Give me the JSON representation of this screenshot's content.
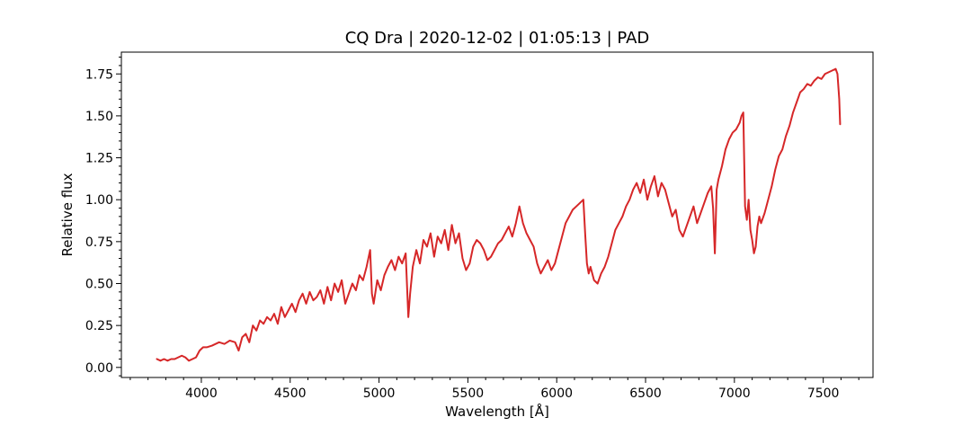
{
  "chart_data": {
    "type": "line",
    "title": "CQ Dra | 2020-12-02 | 01:05:13 | PAD",
    "xlabel": "Wavelength [Å]",
    "ylabel": "Relative flux",
    "xlim": [
      3550,
      7780
    ],
    "ylim": [
      -0.06,
      1.88
    ],
    "xticks": [
      4000,
      4500,
      5000,
      5500,
      6000,
      6500,
      7000,
      7500
    ],
    "xtick_labels": [
      "4000",
      "4500",
      "5000",
      "5500",
      "6000",
      "6500",
      "7000",
      "7500"
    ],
    "yticks": [
      0.0,
      0.25,
      0.5,
      0.75,
      1.0,
      1.25,
      1.5,
      1.75
    ],
    "ytick_labels": [
      "0.00",
      "0.25",
      "0.50",
      "0.75",
      "1.00",
      "1.25",
      "1.50",
      "1.75"
    ],
    "grid": false,
    "legend": "none",
    "series": [
      {
        "color": "#d62728",
        "x": [
          3750,
          3770,
          3790,
          3810,
          3830,
          3850,
          3870,
          3890,
          3910,
          3930,
          3950,
          3970,
          3990,
          4010,
          4030,
          4060,
          4100,
          4130,
          4160,
          4190,
          4210,
          4230,
          4250,
          4270,
          4290,
          4310,
          4330,
          4350,
          4370,
          4390,
          4410,
          4430,
          4450,
          4470,
          4490,
          4510,
          4530,
          4550,
          4570,
          4590,
          4610,
          4630,
          4650,
          4670,
          4690,
          4710,
          4730,
          4750,
          4770,
          4790,
          4810,
          4830,
          4850,
          4870,
          4890,
          4910,
          4930,
          4950,
          4960,
          4970,
          4990,
          5010,
          5030,
          5050,
          5070,
          5090,
          5110,
          5130,
          5150,
          5165,
          5175,
          5190,
          5210,
          5230,
          5250,
          5270,
          5290,
          5310,
          5330,
          5350,
          5370,
          5390,
          5410,
          5430,
          5450,
          5470,
          5490,
          5510,
          5530,
          5550,
          5570,
          5590,
          5610,
          5630,
          5650,
          5670,
          5690,
          5710,
          5730,
          5750,
          5770,
          5790,
          5810,
          5830,
          5850,
          5870,
          5890,
          5910,
          5930,
          5950,
          5970,
          5990,
          6010,
          6030,
          6050,
          6070,
          6090,
          6110,
          6130,
          6150,
          6160,
          6170,
          6180,
          6190,
          6210,
          6230,
          6250,
          6270,
          6290,
          6310,
          6330,
          6350,
          6370,
          6390,
          6410,
          6430,
          6450,
          6470,
          6490,
          6510,
          6530,
          6550,
          6570,
          6590,
          6610,
          6630,
          6650,
          6670,
          6690,
          6710,
          6730,
          6750,
          6770,
          6790,
          6810,
          6830,
          6850,
          6870,
          6880,
          6890,
          6900,
          6910,
          6930,
          6950,
          6970,
          6990,
          7010,
          7030,
          7040,
          7050,
          7060,
          7070,
          7080,
          7090,
          7100,
          7110,
          7120,
          7130,
          7140,
          7150,
          7170,
          7190,
          7210,
          7230,
          7250,
          7270,
          7290,
          7310,
          7330,
          7350,
          7370,
          7390,
          7410,
          7430,
          7450,
          7470,
          7490,
          7510,
          7530,
          7550,
          7570,
          7580,
          7590,
          7595
        ],
        "y": [
          0.05,
          0.04,
          0.05,
          0.04,
          0.05,
          0.05,
          0.06,
          0.07,
          0.06,
          0.04,
          0.05,
          0.06,
          0.1,
          0.12,
          0.12,
          0.13,
          0.15,
          0.14,
          0.16,
          0.15,
          0.1,
          0.18,
          0.2,
          0.15,
          0.25,
          0.22,
          0.28,
          0.26,
          0.3,
          0.28,
          0.32,
          0.26,
          0.36,
          0.3,
          0.34,
          0.38,
          0.33,
          0.4,
          0.44,
          0.38,
          0.45,
          0.4,
          0.42,
          0.46,
          0.38,
          0.48,
          0.4,
          0.5,
          0.45,
          0.52,
          0.38,
          0.44,
          0.5,
          0.46,
          0.55,
          0.52,
          0.6,
          0.7,
          0.44,
          0.38,
          0.52,
          0.46,
          0.55,
          0.6,
          0.64,
          0.58,
          0.66,
          0.62,
          0.68,
          0.3,
          0.44,
          0.6,
          0.7,
          0.62,
          0.76,
          0.72,
          0.8,
          0.66,
          0.78,
          0.74,
          0.82,
          0.7,
          0.85,
          0.74,
          0.8,
          0.65,
          0.58,
          0.62,
          0.72,
          0.76,
          0.74,
          0.7,
          0.64,
          0.66,
          0.7,
          0.74,
          0.76,
          0.8,
          0.84,
          0.78,
          0.86,
          0.96,
          0.86,
          0.8,
          0.76,
          0.72,
          0.62,
          0.56,
          0.6,
          0.64,
          0.58,
          0.62,
          0.7,
          0.78,
          0.86,
          0.9,
          0.94,
          0.96,
          0.98,
          1.0,
          0.8,
          0.62,
          0.56,
          0.6,
          0.52,
          0.5,
          0.56,
          0.6,
          0.66,
          0.74,
          0.82,
          0.86,
          0.9,
          0.96,
          1.0,
          1.06,
          1.1,
          1.04,
          1.12,
          1.0,
          1.08,
          1.14,
          1.02,
          1.1,
          1.06,
          0.98,
          0.9,
          0.94,
          0.82,
          0.78,
          0.84,
          0.9,
          0.96,
          0.86,
          0.92,
          0.98,
          1.04,
          1.08,
          0.95,
          0.68,
          1.06,
          1.12,
          1.2,
          1.3,
          1.36,
          1.4,
          1.42,
          1.46,
          1.5,
          1.52,
          0.96,
          0.88,
          1.0,
          0.82,
          0.76,
          0.68,
          0.72,
          0.84,
          0.9,
          0.86,
          0.92,
          1.0,
          1.08,
          1.18,
          1.26,
          1.3,
          1.38,
          1.44,
          1.52,
          1.58,
          1.64,
          1.66,
          1.69,
          1.68,
          1.71,
          1.73,
          1.72,
          1.75,
          1.76,
          1.77,
          1.78,
          1.75,
          1.6,
          1.45
        ]
      }
    ]
  }
}
